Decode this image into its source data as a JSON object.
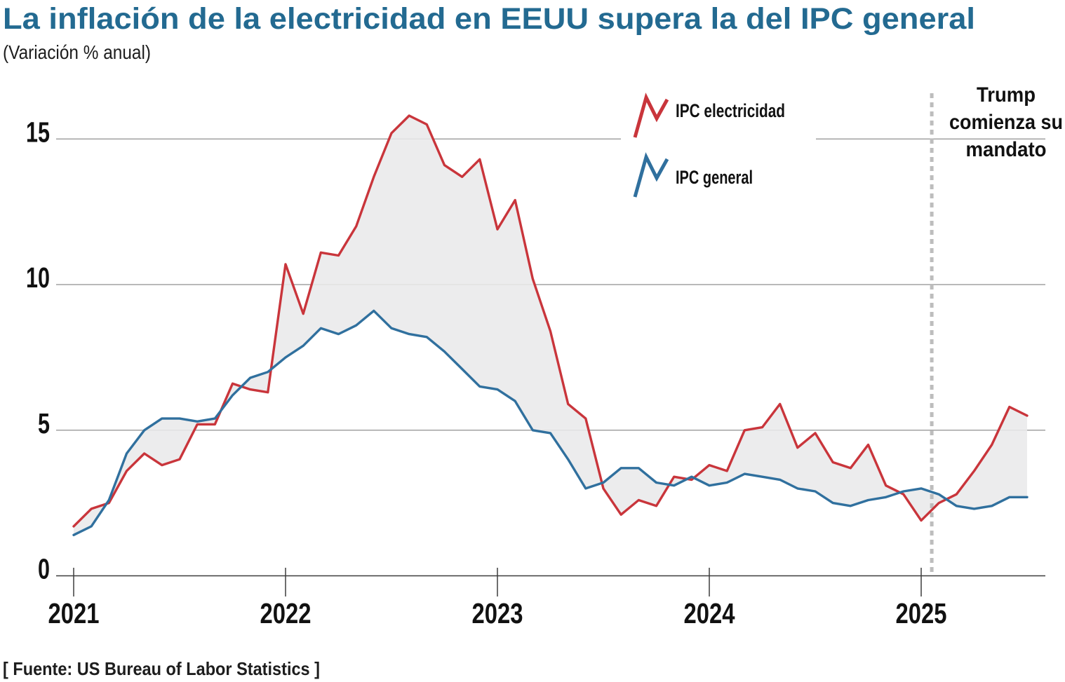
{
  "header": {
    "title": "La inflación de la electricidad en EEUU supera la del IPC general",
    "subtitle": "(Variación % anual)",
    "title_color": "#236a91"
  },
  "legend": [
    {
      "label": "IPC electricidad",
      "color": "#c9353b"
    },
    {
      "label": "IPC general",
      "color": "#30709e"
    }
  ],
  "annotation": {
    "lines": [
      "Trump",
      "comienza su",
      "mandato"
    ]
  },
  "source": "[ Fuente: US Bureau of Labor Statistics ]",
  "chart_data": {
    "type": "line",
    "title": "La inflación de la electricidad en EEUU supera la del IPC general",
    "subtitle": "(Variación % anual)",
    "x_unit": "month",
    "x_start": "2021-01",
    "x_end": "2025-07",
    "x_tick_labels": [
      "2021",
      "2022",
      "2023",
      "2024",
      "2025"
    ],
    "y_ticks": [
      0,
      5,
      10,
      15
    ],
    "ylim": [
      0,
      16.6
    ],
    "grid": true,
    "fill_between_color": "#e9e9eb",
    "vline": {
      "label": "Trump comienza su mandato",
      "month_index_from_jan2021": 48.6,
      "date": "2025-01",
      "color": "#bdbdbd"
    },
    "series": [
      {
        "name": "IPC electricidad",
        "color": "#c9353b",
        "values": [
          1.7,
          2.3,
          2.5,
          3.6,
          4.2,
          3.8,
          4.0,
          5.2,
          5.2,
          6.6,
          6.4,
          6.3,
          10.7,
          9.0,
          11.1,
          11.0,
          12.0,
          13.7,
          15.2,
          15.8,
          15.5,
          14.1,
          13.7,
          14.3,
          11.9,
          12.9,
          10.2,
          8.4,
          5.9,
          5.4,
          3.0,
          2.1,
          2.6,
          2.4,
          3.4,
          3.3,
          3.8,
          3.6,
          5.0,
          5.1,
          5.9,
          4.4,
          4.9,
          3.9,
          3.7,
          4.5,
          3.1,
          2.8,
          1.9,
          2.5,
          2.8,
          3.6,
          4.5,
          5.8,
          5.5
        ]
      },
      {
        "name": "IPC general",
        "color": "#30709e",
        "values": [
          1.4,
          1.7,
          2.6,
          4.2,
          5.0,
          5.4,
          5.4,
          5.3,
          5.4,
          6.2,
          6.8,
          7.0,
          7.5,
          7.9,
          8.5,
          8.3,
          8.6,
          9.1,
          8.5,
          8.3,
          8.2,
          7.7,
          7.1,
          6.5,
          6.4,
          6.0,
          5.0,
          4.9,
          4.0,
          3.0,
          3.2,
          3.7,
          3.7,
          3.2,
          3.1,
          3.4,
          3.1,
          3.2,
          3.5,
          3.4,
          3.3,
          3.0,
          2.9,
          2.5,
          2.4,
          2.6,
          2.7,
          2.9,
          3.0,
          2.8,
          2.4,
          2.3,
          2.4,
          2.7,
          2.7
        ]
      }
    ]
  }
}
